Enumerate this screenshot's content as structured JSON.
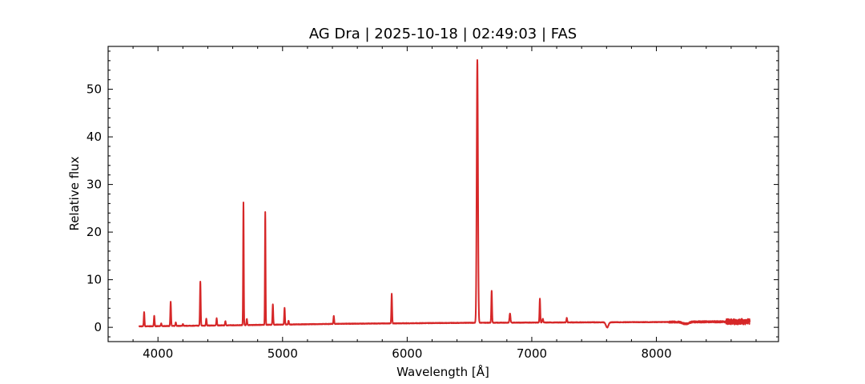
{
  "chart_data": {
    "type": "line",
    "title": "AG Dra | 2025-10-18 | 02:49:03 | FAS",
    "xlabel": "Wavelength [Å]",
    "ylabel": "Relative flux",
    "xlim": [
      3600,
      8980
    ],
    "ylim": [
      -3,
      59
    ],
    "x_ticks": [
      4000,
      5000,
      6000,
      7000,
      8000
    ],
    "y_ticks": [
      0,
      10,
      20,
      30,
      40,
      50
    ],
    "grid": false,
    "legend": "none",
    "series": [
      {
        "color": "#d62728",
        "continuum": [
          [
            3850,
            0.2
          ],
          [
            4500,
            0.4
          ],
          [
            5500,
            0.75
          ],
          [
            6500,
            0.95
          ],
          [
            7500,
            1.05
          ],
          [
            8000,
            1.1
          ],
          [
            8750,
            1.2
          ]
        ],
        "emission_lines": [
          {
            "x": 3889,
            "peak": 3.2,
            "width": 3
          },
          {
            "x": 3970,
            "peak": 2.4,
            "width": 3
          },
          {
            "x": 4026,
            "peak": 0.8,
            "width": 3
          },
          {
            "x": 4102,
            "peak": 5.4,
            "width": 3
          },
          {
            "x": 4143,
            "peak": 1.0,
            "width": 3
          },
          {
            "x": 4200,
            "peak": 0.7,
            "width": 3
          },
          {
            "x": 4340,
            "peak": 9.6,
            "width": 3
          },
          {
            "x": 4388,
            "peak": 1.8,
            "width": 3
          },
          {
            "x": 4471,
            "peak": 1.9,
            "width": 3
          },
          {
            "x": 4541,
            "peak": 1.3,
            "width": 3
          },
          {
            "x": 4686,
            "peak": 26.2,
            "width": 2.5
          },
          {
            "x": 4713,
            "peak": 1.8,
            "width": 3
          },
          {
            "x": 4861,
            "peak": 24.2,
            "width": 2.5
          },
          {
            "x": 4922,
            "peak": 4.8,
            "width": 3
          },
          {
            "x": 5016,
            "peak": 4.1,
            "width": 3
          },
          {
            "x": 5048,
            "peak": 1.4,
            "width": 3
          },
          {
            "x": 5411,
            "peak": 2.4,
            "width": 3
          },
          {
            "x": 5876,
            "peak": 7.0,
            "width": 3
          },
          {
            "x": 6563,
            "peak": 56.2,
            "width": 5
          },
          {
            "x": 6678,
            "peak": 7.7,
            "width": 3
          },
          {
            "x": 6825,
            "peak": 2.9,
            "width": 4
          },
          {
            "x": 7065,
            "peak": 6.0,
            "width": 3
          },
          {
            "x": 7088,
            "peak": 1.8,
            "width": 4
          },
          {
            "x": 7281,
            "peak": 2.0,
            "width": 3
          }
        ],
        "absorption_bands": [
          {
            "x": 7605,
            "depth": 1.1,
            "width": 10
          },
          {
            "x": 8235,
            "depth": 0.4,
            "width": 25
          }
        ],
        "noisy_range": [
          8560,
          8750
        ]
      }
    ]
  }
}
